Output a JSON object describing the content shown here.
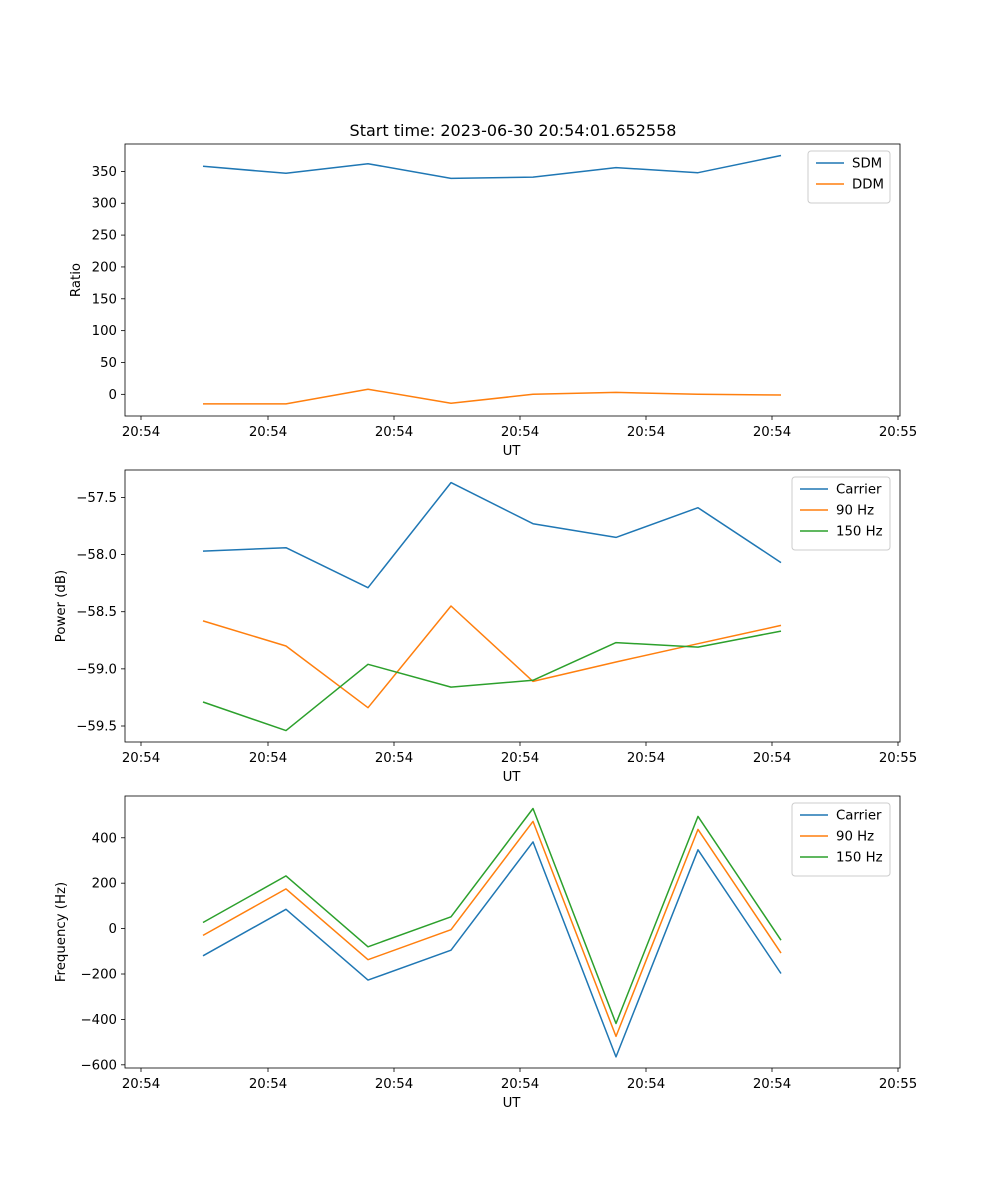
{
  "title": "Start time: 2023-06-30 20:54:01.652558",
  "colors": {
    "blue": "#1f77b4",
    "orange": "#ff7f0e",
    "green": "#2ca02c"
  },
  "chart_data": [
    {
      "type": "line",
      "xlabel": "UT",
      "ylabel": "Ratio",
      "x_tick_labels": [
        "20:54",
        "20:54",
        "20:54",
        "20:54",
        "20:54",
        "20:54",
        "20:55"
      ],
      "yticks": [
        0,
        50,
        100,
        150,
        200,
        250,
        300,
        350
      ],
      "y_tick_labels": [
        "0",
        "50",
        "100",
        "150",
        "200",
        "250",
        "300",
        "350"
      ],
      "ylim": [
        -34,
        393
      ],
      "legend": "top-right",
      "series": [
        {
          "name": "SDM",
          "color": "#1f77b4",
          "values": [
            358,
            347,
            362,
            339,
            341,
            356,
            348,
            375
          ]
        },
        {
          "name": "DDM",
          "color": "#ff7f0e",
          "values": [
            -15,
            -15,
            8,
            -14,
            0,
            3,
            0,
            -1
          ]
        }
      ]
    },
    {
      "type": "line",
      "xlabel": "UT",
      "ylabel": "Power (dB)",
      "x_tick_labels": [
        "20:54",
        "20:54",
        "20:54",
        "20:54",
        "20:54",
        "20:54",
        "20:55"
      ],
      "yticks": [
        -59.5,
        -59.0,
        -58.5,
        -58.0,
        -57.5
      ],
      "y_tick_labels": [
        "−59.5",
        "−59.0",
        "−58.5",
        "−58.0",
        "−57.5"
      ],
      "ylim": [
        -59.64,
        -57.26
      ],
      "legend": "top-right",
      "series": [
        {
          "name": "Carrier",
          "color": "#1f77b4",
          "values": [
            -57.97,
            -57.94,
            -58.29,
            -57.37,
            -57.73,
            -57.85,
            -57.59,
            -58.07
          ]
        },
        {
          "name": "90 Hz",
          "color": "#ff7f0e",
          "values": [
            -58.58,
            -58.8,
            -59.34,
            -58.45,
            -59.11,
            -58.94,
            -58.78,
            -58.62
          ]
        },
        {
          "name": "150 Hz",
          "color": "#2ca02c",
          "values": [
            -59.29,
            -59.54,
            -58.96,
            -59.16,
            -59.1,
            -58.77,
            -58.81,
            -58.67
          ]
        }
      ]
    },
    {
      "type": "line",
      "xlabel": "UT",
      "ylabel": "Frequency (Hz)",
      "x_tick_labels": [
        "20:54",
        "20:54",
        "20:54",
        "20:54",
        "20:54",
        "20:54",
        "20:55"
      ],
      "yticks": [
        -600,
        -400,
        -200,
        0,
        200,
        400
      ],
      "y_tick_labels": [
        "−600",
        "−400",
        "−200",
        "0",
        "200",
        "400"
      ],
      "ylim": [
        -614,
        584
      ],
      "legend": "top-right",
      "series": [
        {
          "name": "Carrier",
          "color": "#1f77b4",
          "values": [
            -120,
            85,
            -227,
            -95,
            382,
            -565,
            347,
            -198
          ]
        },
        {
          "name": "90 Hz",
          "color": "#ff7f0e",
          "values": [
            -30,
            175,
            -137,
            -5,
            472,
            -475,
            437,
            -108
          ]
        },
        {
          "name": "150 Hz",
          "color": "#2ca02c",
          "values": [
            27,
            232,
            -80,
            52,
            529,
            -418,
            494,
            -51
          ]
        }
      ]
    }
  ]
}
